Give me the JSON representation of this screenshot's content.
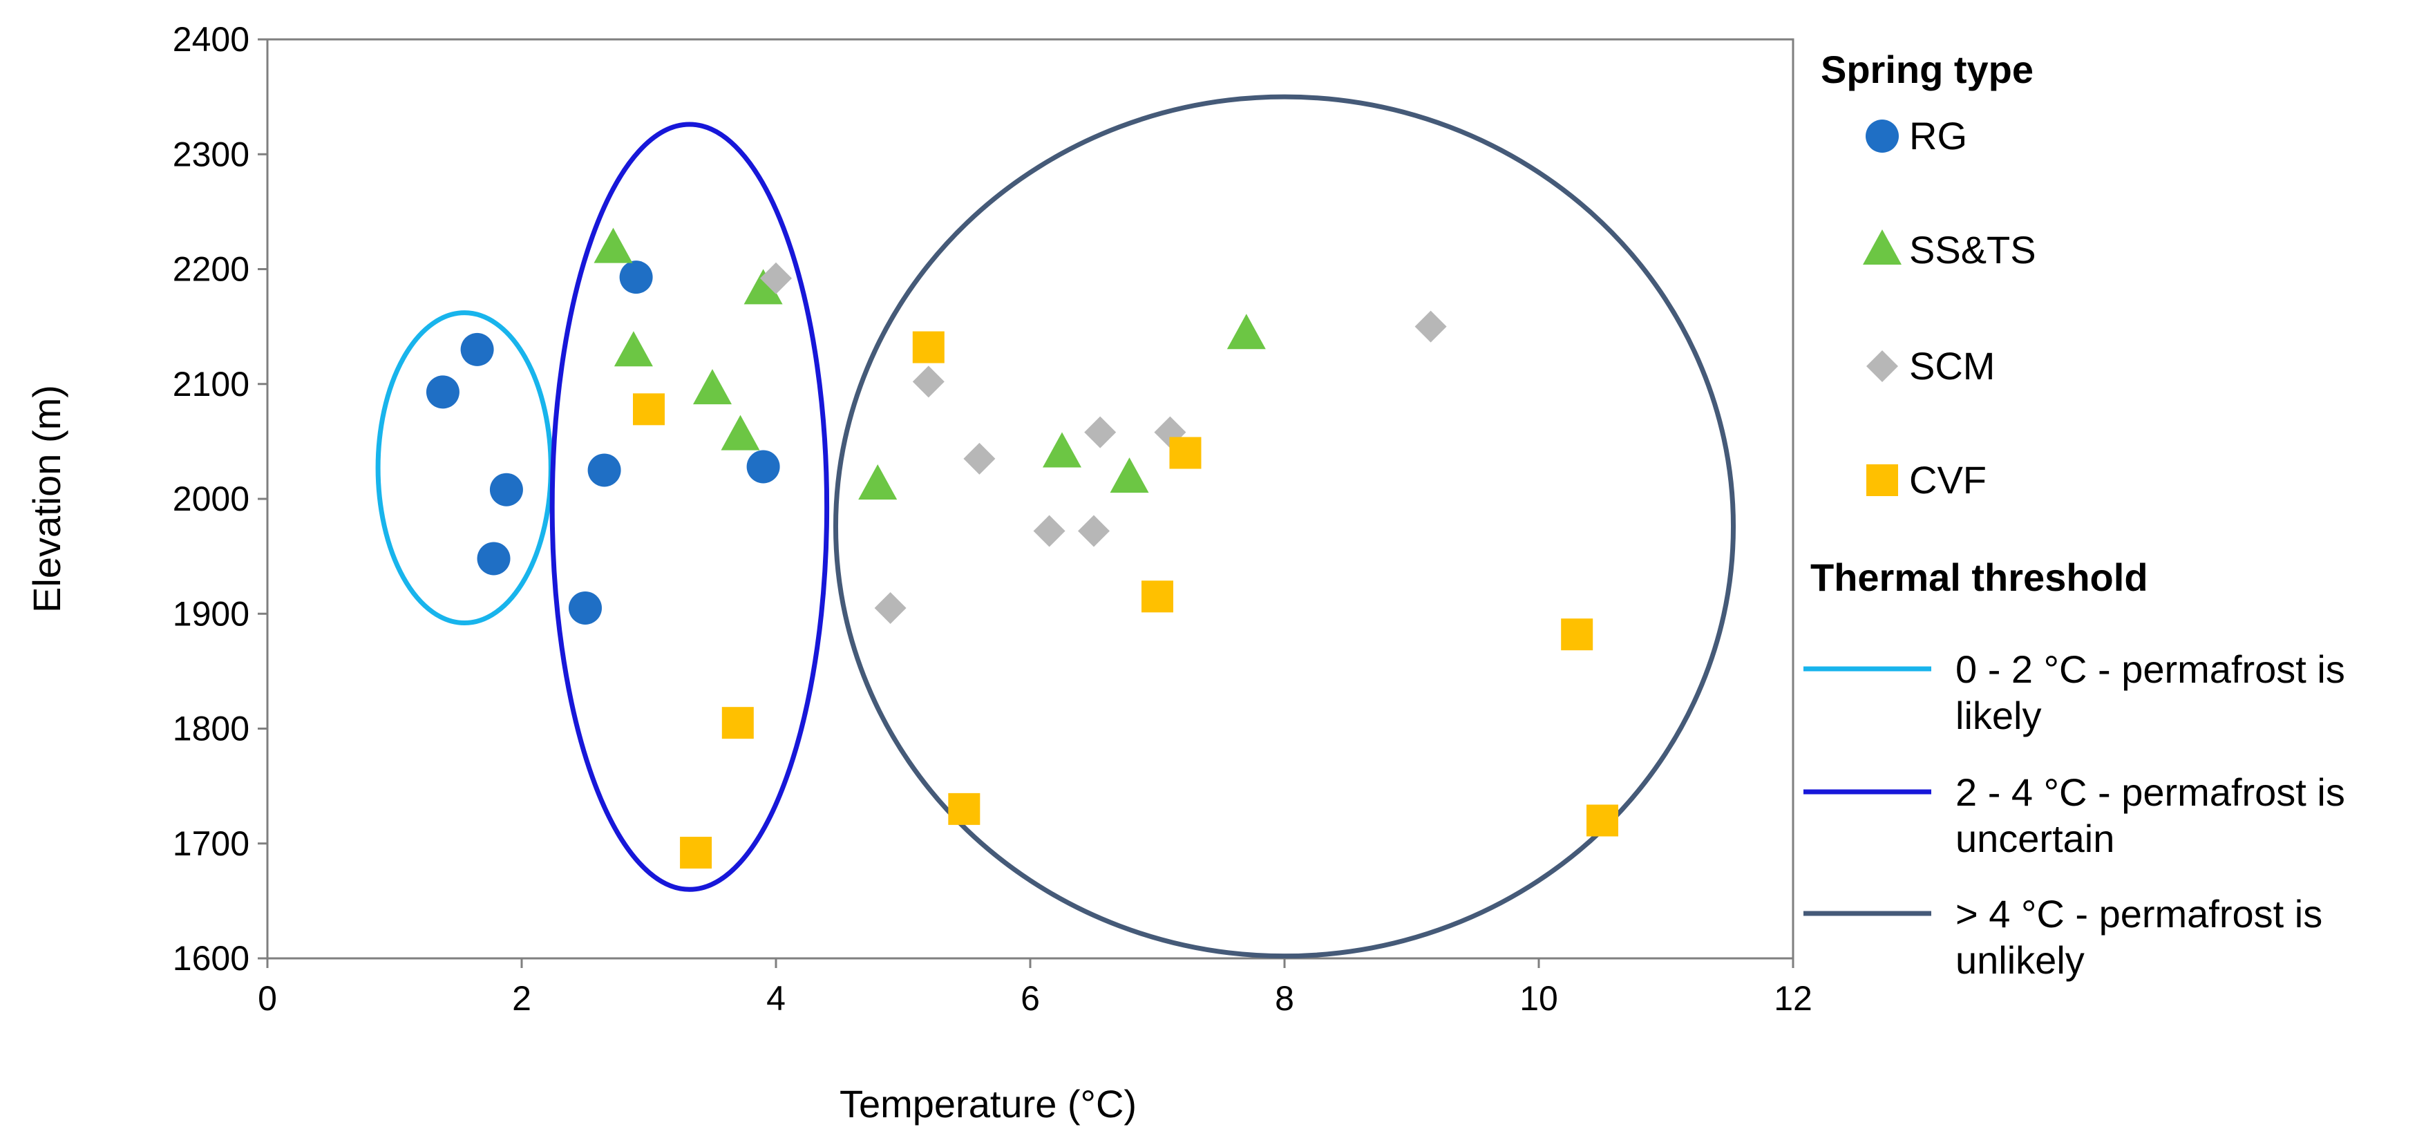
{
  "chart_data": {
    "type": "scatter",
    "title": "",
    "xlabel": "Temperature (°C)",
    "ylabel": "Elevation (m)",
    "xlim": [
      0,
      12
    ],
    "ylim": [
      1600,
      2400
    ],
    "xticks": [
      "0",
      "2",
      "4",
      "6",
      "8",
      "10",
      "12"
    ],
    "yticks": [
      "1600",
      "1700",
      "1800",
      "1900",
      "2000",
      "2100",
      "2200",
      "2300",
      "2400"
    ],
    "grid": false,
    "legend_position": "right",
    "legend_spring_title": "Spring type",
    "legend_threshold_title": "Thermal threshold",
    "series": [
      {
        "name": "RG",
        "marker": "circle",
        "color": "#1f6fc5",
        "points": [
          {
            "x": 1.38,
            "y": 2093
          },
          {
            "x": 1.65,
            "y": 2130
          },
          {
            "x": 1.88,
            "y": 2008
          },
          {
            "x": 1.78,
            "y": 1948
          },
          {
            "x": 2.5,
            "y": 1905
          },
          {
            "x": 2.65,
            "y": 2025
          },
          {
            "x": 2.9,
            "y": 2193
          },
          {
            "x": 3.9,
            "y": 2028
          }
        ]
      },
      {
        "name": "SS&TS",
        "marker": "triangle",
        "color": "#6cc644",
        "points": [
          {
            "x": 2.72,
            "y": 2218
          },
          {
            "x": 2.88,
            "y": 2128
          },
          {
            "x": 3.5,
            "y": 2095
          },
          {
            "x": 3.72,
            "y": 2055
          },
          {
            "x": 3.9,
            "y": 2182
          },
          {
            "x": 4.8,
            "y": 2012
          },
          {
            "x": 6.25,
            "y": 2040
          },
          {
            "x": 6.78,
            "y": 2018
          },
          {
            "x": 7.7,
            "y": 2143
          }
        ]
      },
      {
        "name": "SCM",
        "marker": "diamond",
        "color": "#b7b7b7",
        "points": [
          {
            "x": 4.0,
            "y": 2192
          },
          {
            "x": 4.9,
            "y": 1905
          },
          {
            "x": 5.2,
            "y": 2102
          },
          {
            "x": 5.6,
            "y": 2035
          },
          {
            "x": 6.15,
            "y": 1972
          },
          {
            "x": 6.5,
            "y": 1972
          },
          {
            "x": 6.55,
            "y": 2058
          },
          {
            "x": 7.1,
            "y": 2058
          },
          {
            "x": 9.15,
            "y": 2150
          }
        ]
      },
      {
        "name": "CVF",
        "marker": "square",
        "color": "#ffc000",
        "points": [
          {
            "x": 3.0,
            "y": 2078
          },
          {
            "x": 3.37,
            "y": 1692
          },
          {
            "x": 3.7,
            "y": 1805
          },
          {
            "x": 5.2,
            "y": 2132
          },
          {
            "x": 5.48,
            "y": 1730
          },
          {
            "x": 7.0,
            "y": 1915
          },
          {
            "x": 7.22,
            "y": 2040
          },
          {
            "x": 10.3,
            "y": 1882
          },
          {
            "x": 10.5,
            "y": 1720
          }
        ]
      }
    ],
    "thresholds": [
      {
        "label_line1": "0 - 2 °C - permafrost is",
        "label_line2": "likely",
        "color": "#18b4ec",
        "ellipse": {
          "cx": 1.55,
          "cy": 2027,
          "rx": 0.68,
          "ry": 135
        }
      },
      {
        "label_line1": "2 - 4 °C - permafrost is",
        "label_line2": "uncertain",
        "color": "#1717d9",
        "ellipse": {
          "cx": 3.32,
          "cy": 1993,
          "rx": 1.08,
          "ry": 333
        }
      },
      {
        "label_line1": "> 4 °C - permafrost  is",
        "label_line2": "unlikely",
        "color": "#455a78",
        "ellipse": {
          "cx": 8.0,
          "cy": 1976,
          "rx": 3.53,
          "ry": 374
        }
      }
    ]
  }
}
